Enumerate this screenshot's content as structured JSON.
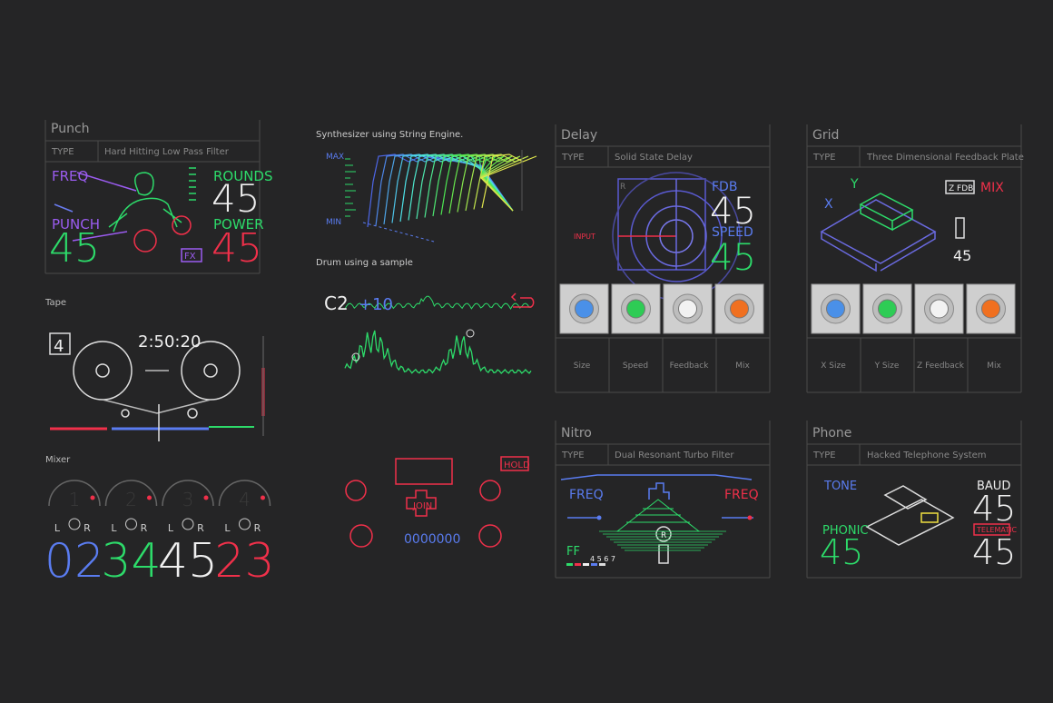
{
  "punch": {
    "title": "Punch",
    "type_label": "TYPE",
    "type_value": "Hard Hitting Low Pass Filter",
    "freq_label": "FREQ",
    "punch_label": "PUNCH",
    "punch_value": "45",
    "rounds_label": "ROUNDS",
    "rounds_value": "45",
    "power_label": "POWER",
    "power_value": "45",
    "fx_label": "FX"
  },
  "tape": {
    "title": "Tape",
    "track": "4",
    "time": "2:50:20"
  },
  "mixer": {
    "title": "Mixer",
    "left_label": "L",
    "right_label": "R",
    "channels": [
      {
        "number": "1",
        "value": "02"
      },
      {
        "number": "2",
        "value": "34"
      },
      {
        "number": "3",
        "value": "45"
      },
      {
        "number": "4",
        "value": "23"
      }
    ]
  },
  "synth": {
    "caption": "Synthesizer using String Engine.",
    "max_label": "MAX",
    "min_label": "MIN"
  },
  "drum": {
    "caption": "Drum using a sample",
    "note": "C2",
    "offset": "+10"
  },
  "game": {
    "hold_label": "HOLD",
    "join_label": "JOIN",
    "score": "0000000"
  },
  "delay": {
    "title": "Delay",
    "type_label": "TYPE",
    "type_value": "Solid State Delay",
    "axis_label": "R",
    "input_label": "INPUT",
    "fdb_label": "FDB",
    "fdb_value": "45",
    "speed_label": "SPEED",
    "speed_value": "45",
    "knobs": [
      "Size",
      "Speed",
      "Feedback",
      "Mix"
    ]
  },
  "grid": {
    "title": "Grid",
    "type_label": "TYPE",
    "type_value": "Three Dimensional Feedback Plate",
    "x_label": "X",
    "y_label": "Y",
    "zfdb_label": "Z FDB",
    "mix_label": "MIX",
    "value": "45",
    "knobs": [
      "X Size",
      "Y Size",
      "Z Feedback",
      "Mix"
    ]
  },
  "nitro": {
    "title": "Nitro",
    "type_label": "TYPE",
    "type_value": "Dual Resonant Turbo Filter",
    "freq_left_label": "FREQ",
    "freq_right_label": "FREQ",
    "ff_label": "FF",
    "gears": "4 5 6 7",
    "gear_label": "R"
  },
  "phone": {
    "title": "Phone",
    "type_label": "TYPE",
    "type_value": "Hacked Telephone System",
    "tone_label": "TONE",
    "phonic_label": "PHONIC",
    "phonic_value": "45",
    "baud_label": "BAUD",
    "baud_value": "45",
    "telematic_label": "TELEMATIC",
    "telematic_value": "45"
  }
}
